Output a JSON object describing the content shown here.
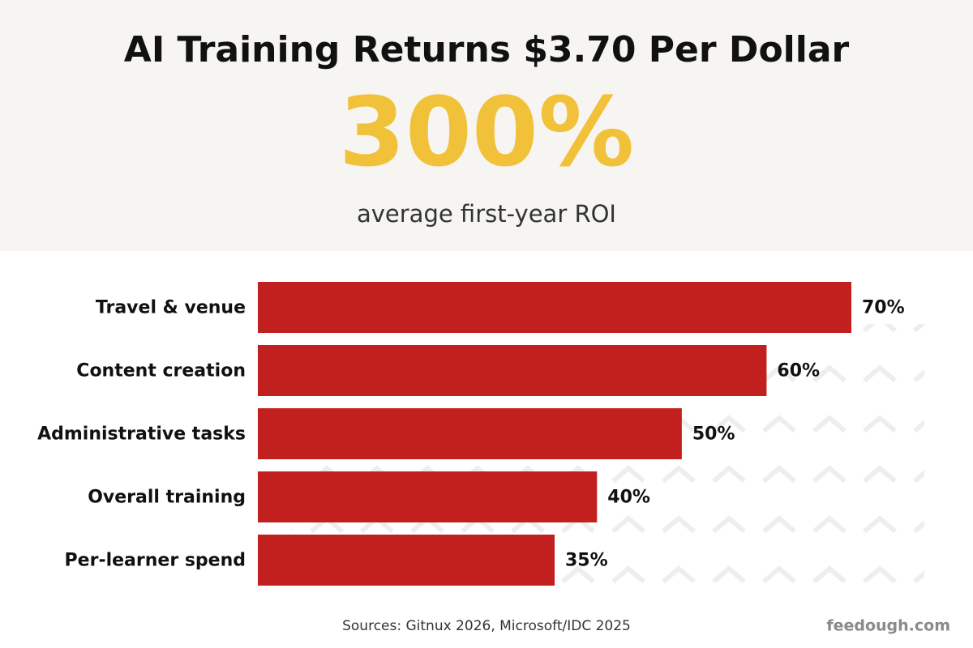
{
  "chart_data": {
    "type": "hbar",
    "title": "AI Training Returns $3.70 Per Dollar",
    "headline": "300%",
    "subtitle": "average first-year ROI",
    "categories": [
      "Travel & venue",
      "Content creation",
      "Administrative tasks",
      "Overall training",
      "Per-learner spend"
    ],
    "values": [
      70,
      60,
      50,
      40,
      35
    ],
    "value_labels": [
      "70%",
      "60%",
      "50%",
      "40%",
      "35%"
    ],
    "color": "#c21f1f",
    "source": "Sources: Gitnux 2026, Microsoft/IDC 2025",
    "brand": "feedough.com"
  }
}
